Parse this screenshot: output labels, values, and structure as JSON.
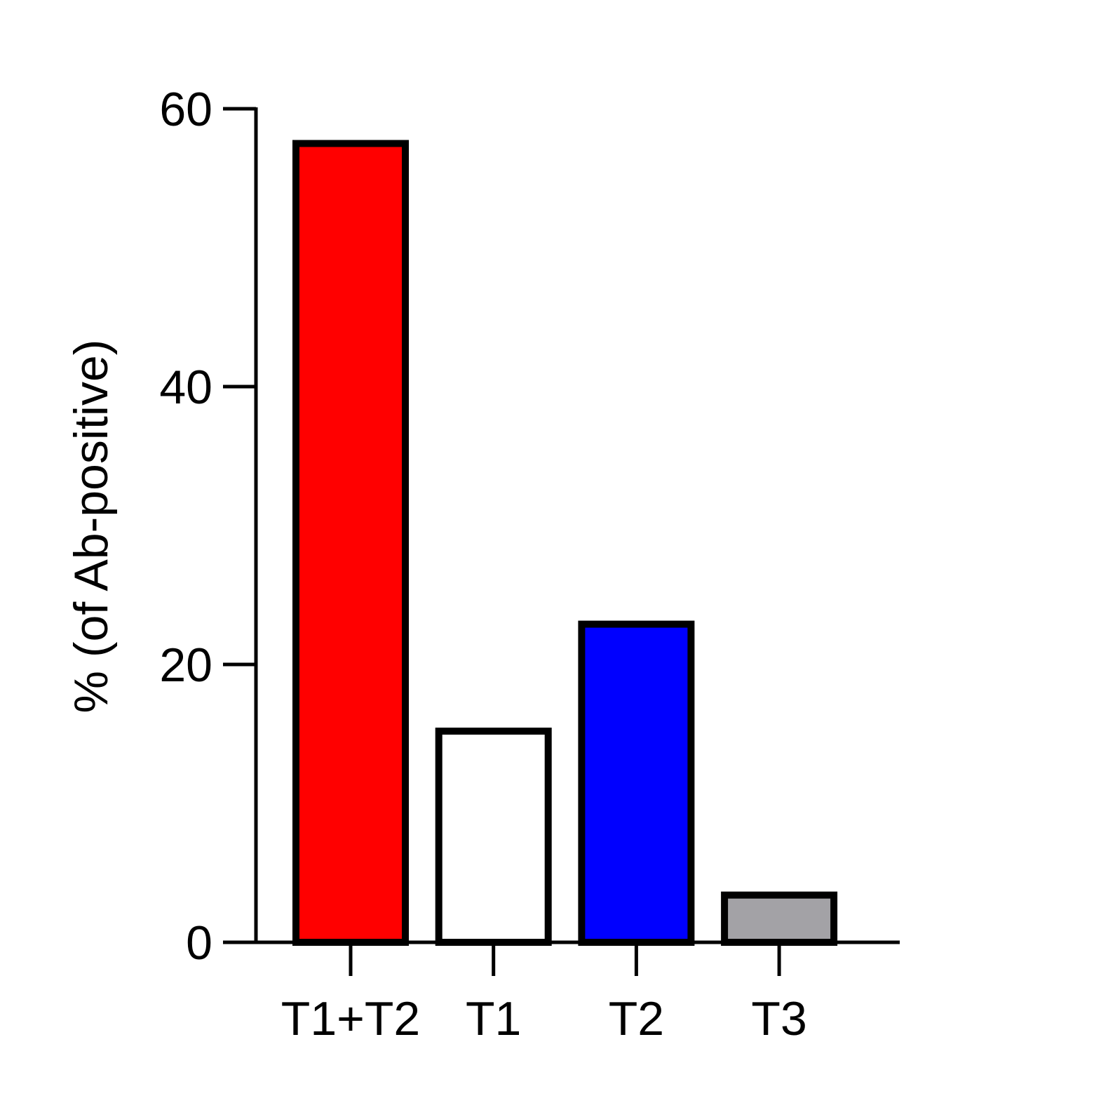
{
  "chart_data": {
    "type": "bar",
    "y_label": "% (of Ab-positive)",
    "categories": [
      "T1+T2",
      "T1",
      "T2",
      "T3"
    ],
    "values": [
      57.5,
      15.2,
      22.9,
      3.4
    ],
    "colors": [
      "#ff0000",
      "#ffffff",
      "#0000ff",
      "#a3a2a6"
    ],
    "ylim": [
      0,
      60
    ],
    "yticks": [
      0,
      20,
      40,
      60
    ],
    "grid": false
  }
}
